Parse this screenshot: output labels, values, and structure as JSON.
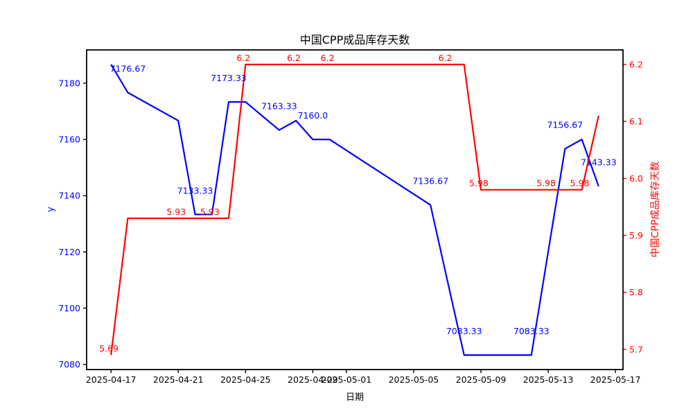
{
  "chart_data": {
    "type": "line",
    "title": "中国CPP成品库存天数",
    "xlabel": "日期",
    "ylabel_left": "y",
    "ylabel_right": "中国CPP成品库存天数",
    "background": "#ffffff",
    "grid": false,
    "legend": "none",
    "x_tick_labels": [
      "2025-04-17",
      "2025-04-21",
      "2025-04-25",
      "2025-04-29",
      "2025-05-01",
      "2025-05-05",
      "2025-05-09",
      "2025-05-13",
      "2025-05-17"
    ],
    "x_tick_day_offsets": [
      0,
      4,
      8,
      12,
      14,
      18,
      22,
      26,
      30
    ],
    "x_range_days": [
      -1.45,
      30.45
    ],
    "dates": [
      "2025-04-17",
      "2025-04-18",
      "2025-04-21",
      "2025-04-22",
      "2025-04-23",
      "2025-04-24",
      "2025-04-25",
      "2025-04-27",
      "2025-04-28",
      "2025-04-29",
      "2025-04-30",
      "2025-05-06",
      "2025-05-07",
      "2025-05-08",
      "2025-05-09",
      "2025-05-12",
      "2025-05-13",
      "2025-05-14",
      "2025-05-15",
      "2025-05-16"
    ],
    "day_offsets": [
      0,
      1,
      4,
      5,
      6,
      7,
      8,
      10,
      11,
      12,
      13,
      19,
      20,
      21,
      22,
      25,
      26,
      27,
      28,
      29
    ],
    "series": [
      {
        "name": "y",
        "axis": "left",
        "color": "#0000ff",
        "values": [
          7186.67,
          7176.67,
          7166.67,
          7133.33,
          7133.33,
          7173.33,
          7173.33,
          7163.33,
          7166.67,
          7160.0,
          7160.0,
          7136.67,
          7110.0,
          7083.33,
          7083.33,
          7083.33,
          7120.0,
          7156.67,
          7160.0,
          7143.33
        ],
        "point_labels": [
          null,
          "7176.67",
          null,
          "7133.33",
          null,
          "7173.33",
          null,
          "7163.33",
          null,
          "7160.0",
          null,
          "7136.67",
          null,
          "7083.33",
          null,
          "7083.33",
          null,
          "7156.67",
          null,
          "7143.33"
        ]
      },
      {
        "name": "中国CPP成品库存天数",
        "axis": "right",
        "color": "#ff0000",
        "values": [
          5.69,
          5.93,
          5.93,
          5.93,
          5.93,
          5.93,
          6.2,
          6.2,
          6.2,
          6.2,
          6.2,
          6.2,
          6.2,
          6.2,
          5.98,
          5.98,
          5.98,
          5.98,
          5.98,
          6.11
        ],
        "point_labels": [
          "5.69",
          null,
          "5.93",
          null,
          "5.93",
          null,
          "6.2",
          null,
          "6.2",
          null,
          "6.2",
          null,
          "6.2",
          null,
          "5.98",
          null,
          "5.98",
          null,
          "5.98",
          null
        ]
      }
    ],
    "left_axis": {
      "ticks": [
        "7080",
        "7100",
        "7120",
        "7140",
        "7160",
        "7180"
      ],
      "range": [
        7078.17,
        7191.83
      ],
      "label_color": "#0000ff",
      "tick_color": "#000000"
    },
    "right_axis": {
      "ticks": [
        "5.7",
        "5.8",
        "5.9",
        "6.0",
        "6.1",
        "6.2"
      ],
      "range": [
        5.6645,
        6.2255
      ],
      "label_color": "#ff0000",
      "tick_color": "#ff0000"
    },
    "x_axis": {
      "label_color": "#000000",
      "tick_color": "#000000"
    },
    "frame_color": "#000000"
  }
}
